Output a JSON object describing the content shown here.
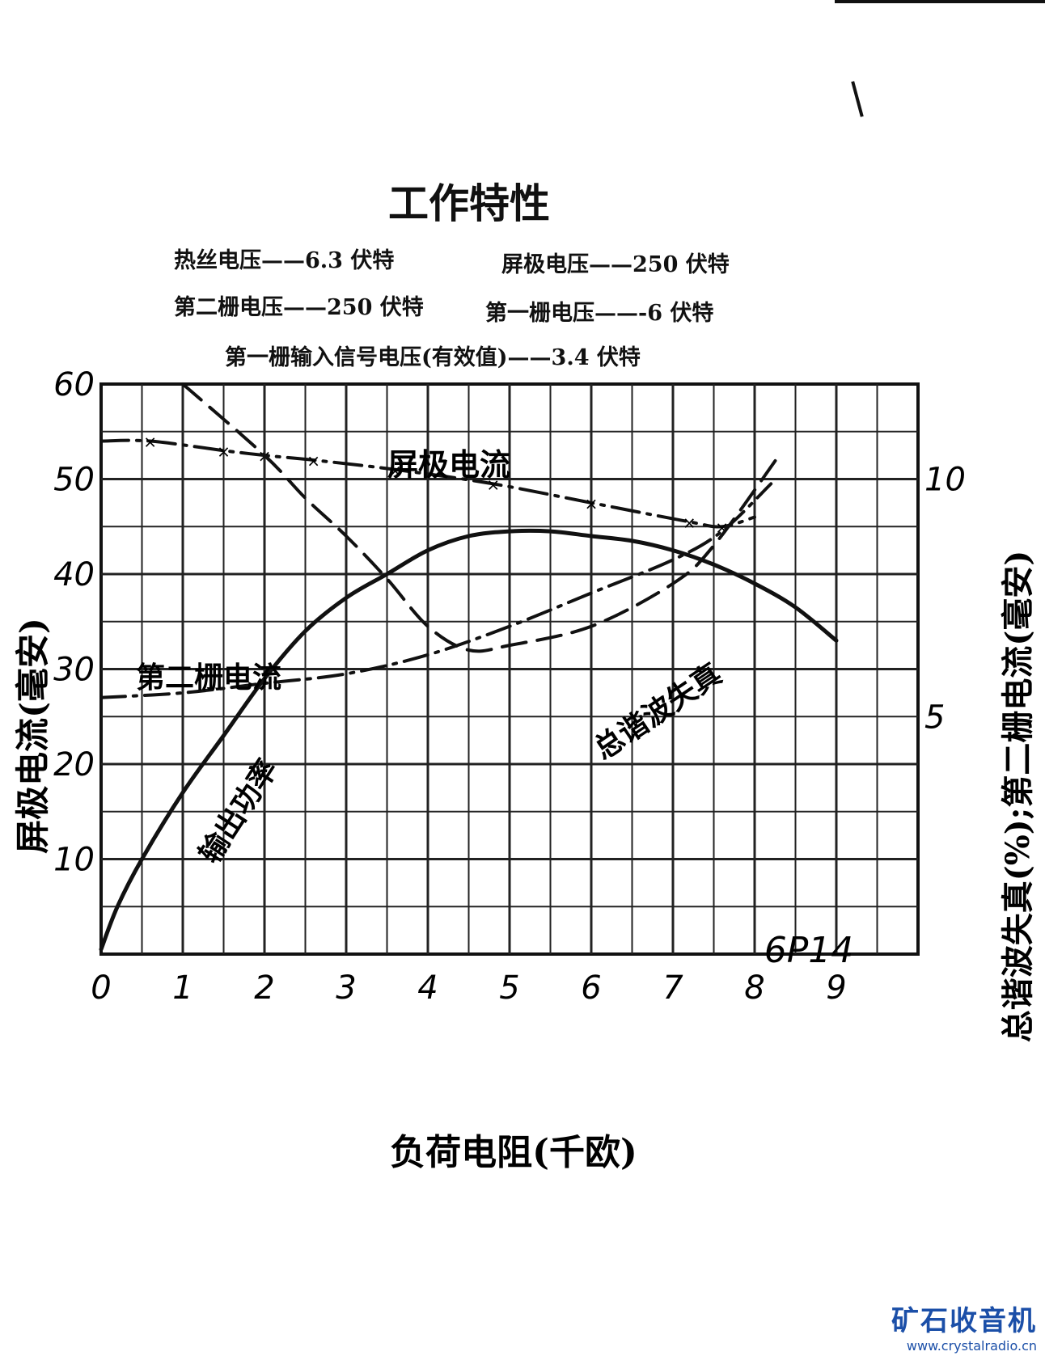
{
  "chart_data": {
    "type": "line",
    "title": "工作特性",
    "model_label": "6P14",
    "conditions": [
      "热丝电压——6.3 伏特",
      "屏极电压——250 伏特",
      "第二栅电压——250 伏特",
      "第一栅电压——-6 伏特",
      "第一栅输入信号电压(有效值)——3.4 伏特"
    ],
    "xlabel": "负荷电阻(千欧)",
    "ylabel_left": "屏极电流(毫安)",
    "ylabel_right": "总谐波失真(%);第二栅电流(毫安)",
    "xlim": [
      0,
      10
    ],
    "ylim_left": [
      0,
      60
    ],
    "ylim_right": [
      0,
      12
    ],
    "x_ticks": [
      "0",
      "1",
      "2",
      "3",
      "4",
      "5",
      "6",
      "7",
      "8",
      "9"
    ],
    "y_left_ticks": [
      "10",
      "20",
      "30",
      "40",
      "50",
      "60"
    ],
    "y_right_ticks": [
      "5",
      "10"
    ],
    "grid": true,
    "series": [
      {
        "name": "屏极电流",
        "axis": "left",
        "style": "dash-dot-x",
        "x": [
          0,
          0.6,
          1.5,
          2.0,
          2.6,
          3.6,
          4.8,
          6.0,
          7.2,
          7.6,
          8.0
        ],
        "values": [
          54,
          54,
          53,
          52.5,
          52,
          51,
          49.5,
          47.5,
          45.5,
          45,
          46
        ]
      },
      {
        "name": "输出功率",
        "axis": "left",
        "style": "solid",
        "x": [
          0,
          0.2,
          0.5,
          1.0,
          1.5,
          2.0,
          2.5,
          3.0,
          3.5,
          4.0,
          4.5,
          5.0,
          5.5,
          6.0,
          6.5,
          7.0,
          7.5,
          8.0,
          8.5,
          9.0
        ],
        "values": [
          0.5,
          5,
          10,
          17,
          23,
          29,
          34,
          37.5,
          40,
          42.5,
          44,
          44.5,
          44.5,
          44,
          43.5,
          42.5,
          41,
          39,
          36.5,
          33
        ]
      },
      {
        "name": "第二栅电流",
        "axis": "right",
        "style": "dash-dot",
        "x": [
          0,
          1.0,
          2.0,
          3.0,
          4.0,
          5.0,
          6.0,
          7.0,
          7.6,
          8.2
        ],
        "values": [
          5.4,
          5.5,
          5.7,
          5.9,
          6.3,
          6.9,
          7.6,
          8.3,
          8.9,
          9.9
        ]
      },
      {
        "name": "总谐波失真",
        "axis": "right",
        "style": "dashed",
        "x": [
          1.0,
          2.0,
          2.5,
          3.0,
          3.5,
          4.0,
          4.5,
          5.0,
          6.0,
          7.0,
          7.5,
          8.3
        ],
        "values": [
          12,
          10.5,
          9.6,
          8.8,
          7.9,
          6.9,
          6.4,
          6.5,
          6.9,
          7.8,
          8.6,
          10.5
        ]
      }
    ],
    "annotations": [
      "屏极电流",
      "第二栅电流",
      "输出功率",
      "总谐波失真"
    ]
  },
  "watermark": {
    "name": "矿石收音机",
    "url": "www.crystalradio.cn"
  }
}
